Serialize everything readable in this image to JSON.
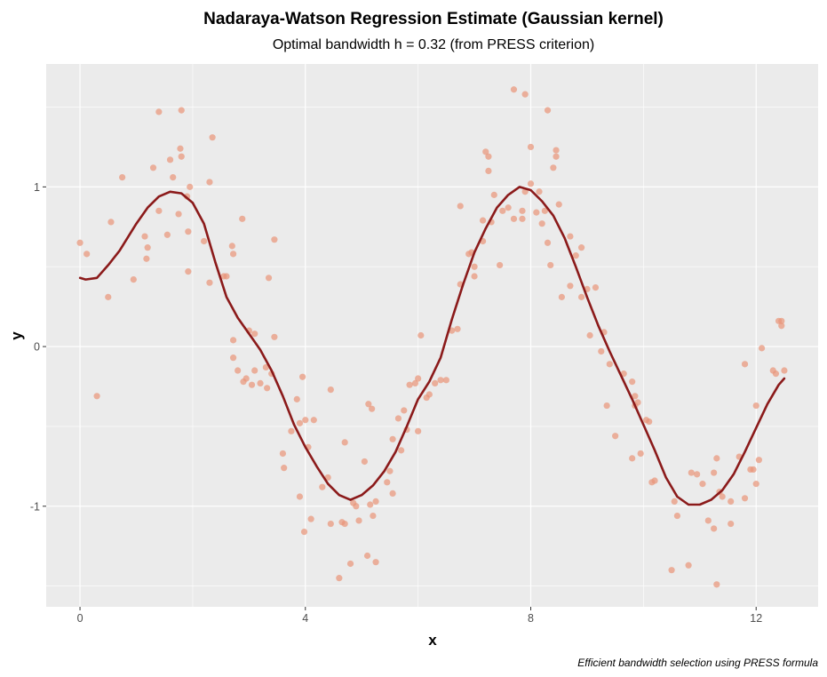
{
  "chart_data": {
    "type": "scatter",
    "title": "Nadaraya-Watson Regression Estimate (Gaussian kernel)",
    "subtitle": "Optimal bandwidth h = 0.32 (from PRESS criterion)",
    "caption": "Efficient bandwidth selection using PRESS formula",
    "xlabel": "x",
    "ylabel": "y",
    "xlim": [
      -0.6,
      13.1
    ],
    "ylim": [
      -1.63,
      1.77
    ],
    "xticks": [
      0,
      4,
      8,
      12
    ],
    "xtick_labels": [
      "0",
      "4",
      "8",
      "12"
    ],
    "yticks": [
      -1,
      0,
      1
    ],
    "ytick_labels": [
      "-1",
      "0",
      "1"
    ],
    "grid": true,
    "legend": "none",
    "colors": {
      "panel": "#ebebeb",
      "grid": "#ffffff",
      "points": "#e9967a",
      "curve": "#8b1a1a"
    },
    "series": [
      {
        "type": "scatter",
        "points": [
          [
            0.0,
            0.65
          ],
          [
            0.12,
            0.58
          ],
          [
            0.3,
            -0.31
          ],
          [
            0.5,
            0.31
          ],
          [
            0.55,
            0.78
          ],
          [
            0.75,
            1.06
          ],
          [
            0.95,
            0.42
          ],
          [
            1.15,
            0.69
          ],
          [
            1.18,
            0.55
          ],
          [
            1.2,
            0.62
          ],
          [
            1.3,
            1.12
          ],
          [
            1.4,
            0.85
          ],
          [
            1.4,
            1.47
          ],
          [
            1.55,
            0.7
          ],
          [
            1.6,
            1.17
          ],
          [
            1.65,
            1.06
          ],
          [
            1.75,
            0.83
          ],
          [
            1.78,
            1.24
          ],
          [
            1.8,
            1.48
          ],
          [
            1.8,
            1.19
          ],
          [
            1.9,
            0.94
          ],
          [
            1.92,
            0.47
          ],
          [
            1.92,
            0.72
          ],
          [
            1.95,
            1.0
          ],
          [
            2.2,
            0.66
          ],
          [
            2.3,
            1.03
          ],
          [
            2.3,
            0.4
          ],
          [
            2.35,
            1.31
          ],
          [
            2.55,
            0.44
          ],
          [
            2.6,
            0.44
          ],
          [
            2.7,
            0.63
          ],
          [
            2.72,
            0.58
          ],
          [
            2.72,
            0.04
          ],
          [
            2.72,
            -0.07
          ],
          [
            2.8,
            -0.15
          ],
          [
            2.88,
            0.8
          ],
          [
            2.9,
            -0.22
          ],
          [
            2.95,
            -0.2
          ],
          [
            3.0,
            0.1
          ],
          [
            3.05,
            -0.24
          ],
          [
            3.1,
            0.08
          ],
          [
            3.1,
            -0.15
          ],
          [
            3.2,
            -0.23
          ],
          [
            3.3,
            -0.13
          ],
          [
            3.32,
            -0.26
          ],
          [
            3.35,
            0.43
          ],
          [
            3.4,
            -0.17
          ],
          [
            3.45,
            0.67
          ],
          [
            3.45,
            0.06
          ],
          [
            3.6,
            -0.67
          ],
          [
            3.62,
            -0.76
          ],
          [
            3.75,
            -0.53
          ],
          [
            3.85,
            -0.33
          ],
          [
            3.9,
            -0.48
          ],
          [
            3.9,
            -0.94
          ],
          [
            3.95,
            -0.19
          ],
          [
            3.98,
            -1.16
          ],
          [
            4.0,
            -0.46
          ],
          [
            4.05,
            -0.63
          ],
          [
            4.1,
            -1.08
          ],
          [
            4.15,
            -0.46
          ],
          [
            4.3,
            -0.88
          ],
          [
            4.4,
            -0.82
          ],
          [
            4.45,
            -0.27
          ],
          [
            4.45,
            -1.11
          ],
          [
            4.6,
            -1.45
          ],
          [
            4.65,
            -1.1
          ],
          [
            4.7,
            -0.6
          ],
          [
            4.7,
            -1.11
          ],
          [
            4.8,
            -1.36
          ],
          [
            4.85,
            -0.98
          ],
          [
            4.9,
            -1.0
          ],
          [
            4.95,
            -1.09
          ],
          [
            5.05,
            -0.72
          ],
          [
            5.1,
            -1.31
          ],
          [
            5.12,
            -0.36
          ],
          [
            5.15,
            -0.99
          ],
          [
            5.18,
            -0.39
          ],
          [
            5.2,
            -1.06
          ],
          [
            5.25,
            -1.35
          ],
          [
            5.25,
            -0.97
          ],
          [
            5.45,
            -0.85
          ],
          [
            5.5,
            -0.78
          ],
          [
            5.55,
            -0.92
          ],
          [
            5.55,
            -0.58
          ],
          [
            5.65,
            -0.45
          ],
          [
            5.7,
            -0.65
          ],
          [
            5.75,
            -0.4
          ],
          [
            5.8,
            -0.52
          ],
          [
            5.85,
            -0.24
          ],
          [
            5.95,
            -0.23
          ],
          [
            6.0,
            -0.53
          ],
          [
            6.0,
            -0.2
          ],
          [
            6.05,
            0.07
          ],
          [
            6.15,
            -0.32
          ],
          [
            6.2,
            -0.3
          ],
          [
            6.3,
            -0.23
          ],
          [
            6.4,
            -0.21
          ],
          [
            6.5,
            -0.21
          ],
          [
            6.6,
            0.1
          ],
          [
            6.7,
            0.11
          ],
          [
            6.75,
            0.39
          ],
          [
            6.75,
            0.88
          ],
          [
            6.9,
            0.58
          ],
          [
            6.95,
            0.59
          ],
          [
            7.0,
            0.5
          ],
          [
            7.0,
            0.44
          ],
          [
            7.15,
            0.79
          ],
          [
            7.15,
            0.66
          ],
          [
            7.2,
            1.22
          ],
          [
            7.25,
            1.19
          ],
          [
            7.25,
            1.1
          ],
          [
            7.3,
            0.78
          ],
          [
            7.35,
            0.95
          ],
          [
            7.45,
            0.51
          ],
          [
            7.5,
            0.85
          ],
          [
            7.6,
            0.87
          ],
          [
            7.7,
            0.8
          ],
          [
            7.7,
            1.61
          ],
          [
            7.85,
            0.85
          ],
          [
            7.85,
            0.8
          ],
          [
            7.9,
            0.97
          ],
          [
            7.9,
            1.58
          ],
          [
            8.0,
            1.02
          ],
          [
            8.0,
            1.25
          ],
          [
            8.1,
            0.84
          ],
          [
            8.15,
            0.97
          ],
          [
            8.2,
            0.77
          ],
          [
            8.25,
            0.85
          ],
          [
            8.3,
            0.65
          ],
          [
            8.3,
            1.48
          ],
          [
            8.35,
            0.51
          ],
          [
            8.4,
            1.12
          ],
          [
            8.45,
            1.19
          ],
          [
            8.45,
            1.23
          ],
          [
            8.5,
            0.89
          ],
          [
            8.55,
            0.31
          ],
          [
            8.7,
            0.38
          ],
          [
            8.7,
            0.69
          ],
          [
            8.8,
            0.57
          ],
          [
            8.9,
            0.31
          ],
          [
            8.9,
            0.62
          ],
          [
            9.0,
            0.36
          ],
          [
            9.05,
            0.07
          ],
          [
            9.15,
            0.37
          ],
          [
            9.25,
            -0.03
          ],
          [
            9.3,
            0.09
          ],
          [
            9.35,
            -0.37
          ],
          [
            9.4,
            -0.11
          ],
          [
            9.5,
            -0.56
          ],
          [
            9.65,
            -0.17
          ],
          [
            9.8,
            -0.22
          ],
          [
            9.8,
            -0.7
          ],
          [
            9.85,
            -0.31
          ],
          [
            9.85,
            -0.37
          ],
          [
            9.9,
            -0.35
          ],
          [
            9.95,
            -0.67
          ],
          [
            10.05,
            -0.46
          ],
          [
            10.1,
            -0.47
          ],
          [
            10.15,
            -0.85
          ],
          [
            10.2,
            -0.84
          ],
          [
            10.5,
            -1.4
          ],
          [
            10.55,
            -0.97
          ],
          [
            10.6,
            -1.06
          ],
          [
            10.8,
            -1.37
          ],
          [
            10.85,
            -0.79
          ],
          [
            10.95,
            -0.8
          ],
          [
            11.05,
            -0.86
          ],
          [
            11.15,
            -1.09
          ],
          [
            11.25,
            -0.79
          ],
          [
            11.25,
            -1.14
          ],
          [
            11.3,
            -0.7
          ],
          [
            11.3,
            -1.49
          ],
          [
            11.35,
            -0.91
          ],
          [
            11.4,
            -0.94
          ],
          [
            11.55,
            -1.11
          ],
          [
            11.55,
            -0.97
          ],
          [
            11.7,
            -0.69
          ],
          [
            11.8,
            -0.11
          ],
          [
            11.8,
            -0.95
          ],
          [
            11.9,
            -0.77
          ],
          [
            11.95,
            -0.77
          ],
          [
            12.0,
            -0.86
          ],
          [
            12.0,
            -0.37
          ],
          [
            12.05,
            -0.71
          ],
          [
            12.1,
            -0.01
          ],
          [
            12.3,
            -0.15
          ],
          [
            12.35,
            -0.17
          ],
          [
            12.4,
            0.16
          ],
          [
            12.45,
            0.13
          ],
          [
            12.45,
            0.16
          ],
          [
            12.5,
            -0.15
          ]
        ]
      },
      {
        "type": "line",
        "points": [
          [
            0.0,
            0.43
          ],
          [
            0.1,
            0.42
          ],
          [
            0.3,
            0.43
          ],
          [
            0.5,
            0.51
          ],
          [
            0.7,
            0.6
          ],
          [
            1.0,
            0.77
          ],
          [
            1.2,
            0.87
          ],
          [
            1.4,
            0.94
          ],
          [
            1.6,
            0.97
          ],
          [
            1.8,
            0.96
          ],
          [
            2.0,
            0.9
          ],
          [
            2.2,
            0.77
          ],
          [
            2.4,
            0.53
          ],
          [
            2.6,
            0.31
          ],
          [
            2.8,
            0.18
          ],
          [
            3.0,
            0.08
          ],
          [
            3.2,
            -0.02
          ],
          [
            3.4,
            -0.15
          ],
          [
            3.6,
            -0.31
          ],
          [
            3.8,
            -0.49
          ],
          [
            4.0,
            -0.63
          ],
          [
            4.2,
            -0.75
          ],
          [
            4.4,
            -0.86
          ],
          [
            4.6,
            -0.93
          ],
          [
            4.8,
            -0.96
          ],
          [
            5.0,
            -0.93
          ],
          [
            5.2,
            -0.87
          ],
          [
            5.4,
            -0.78
          ],
          [
            5.6,
            -0.66
          ],
          [
            5.8,
            -0.5
          ],
          [
            6.0,
            -0.33
          ],
          [
            6.2,
            -0.22
          ],
          [
            6.4,
            -0.07
          ],
          [
            6.6,
            0.17
          ],
          [
            6.8,
            0.39
          ],
          [
            7.0,
            0.59
          ],
          [
            7.2,
            0.74
          ],
          [
            7.4,
            0.87
          ],
          [
            7.6,
            0.95
          ],
          [
            7.8,
            1.0
          ],
          [
            8.0,
            0.98
          ],
          [
            8.2,
            0.91
          ],
          [
            8.4,
            0.82
          ],
          [
            8.6,
            0.68
          ],
          [
            8.8,
            0.5
          ],
          [
            9.0,
            0.31
          ],
          [
            9.2,
            0.13
          ],
          [
            9.4,
            -0.03
          ],
          [
            9.6,
            -0.18
          ],
          [
            9.8,
            -0.33
          ],
          [
            10.0,
            -0.49
          ],
          [
            10.2,
            -0.65
          ],
          [
            10.4,
            -0.82
          ],
          [
            10.6,
            -0.94
          ],
          [
            10.8,
            -0.99
          ],
          [
            11.0,
            -0.99
          ],
          [
            11.2,
            -0.96
          ],
          [
            11.4,
            -0.9
          ],
          [
            11.6,
            -0.8
          ],
          [
            11.8,
            -0.66
          ],
          [
            12.0,
            -0.51
          ],
          [
            12.2,
            -0.36
          ],
          [
            12.4,
            -0.24
          ],
          [
            12.5,
            -0.2
          ]
        ]
      }
    ]
  }
}
